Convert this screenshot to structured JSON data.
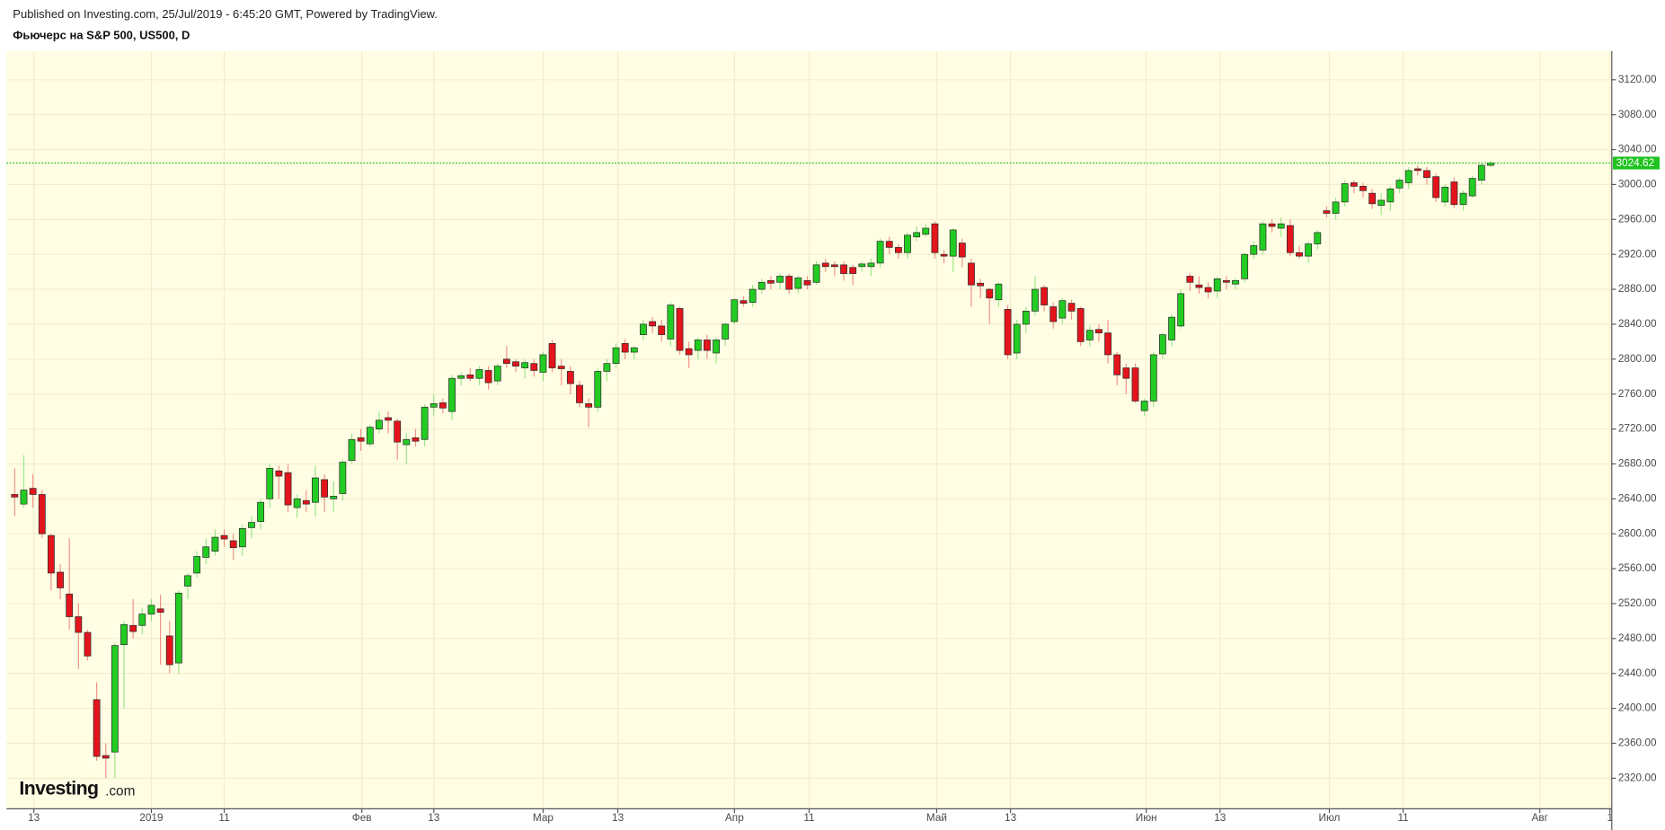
{
  "published": "Published on Investing.com, 25/Jul/2019 - 6:45:20 GMT, Powered by TradingView.",
  "logo": {
    "name": "Investing",
    "suffix": ".com"
  },
  "chart_data": {
    "type": "candlestick",
    "title": "Фьючерс на S&P 500, US500, D",
    "up_color": "#22cc22",
    "down_color": "#e3141c",
    "last_price": 3024.62,
    "last_price_color": "#1fc21f",
    "grid": true,
    "xlim": [
      -0.9,
      175.3
    ],
    "xticks": [
      {
        "value": 2.1,
        "label": "13"
      },
      {
        "value": 15,
        "label": "2019"
      },
      {
        "value": 23,
        "label": "11"
      },
      {
        "value": 38.1,
        "label": "Фев"
      },
      {
        "value": 46,
        "label": "13"
      },
      {
        "value": 58,
        "label": "Мар"
      },
      {
        "value": 66.2,
        "label": "13"
      },
      {
        "value": 79,
        "label": "Апр"
      },
      {
        "value": 87.2,
        "label": "11"
      },
      {
        "value": 101.2,
        "label": "Май"
      },
      {
        "value": 109.3,
        "label": "13"
      },
      {
        "value": 124.2,
        "label": "Июн"
      },
      {
        "value": 132.3,
        "label": "13"
      },
      {
        "value": 144.3,
        "label": "Июл"
      },
      {
        "value": 152.4,
        "label": "11"
      },
      {
        "value": 167.4,
        "label": "Авг"
      },
      {
        "value": 175.1,
        "label": "1"
      }
    ],
    "ylim": [
      2285,
      3153
    ],
    "yticks": [
      {
        "value": 2320,
        "label": "2320.00"
      },
      {
        "value": 2360,
        "label": "2360.00"
      },
      {
        "value": 2400,
        "label": "2400.00"
      },
      {
        "value": 2440,
        "label": "2440.00"
      },
      {
        "value": 2480,
        "label": "2480.00"
      },
      {
        "value": 2520,
        "label": "2520.00"
      },
      {
        "value": 2560,
        "label": "2560.00"
      },
      {
        "value": 2600,
        "label": "2600.00"
      },
      {
        "value": 2640,
        "label": "2640.00"
      },
      {
        "value": 2680,
        "label": "2680.00"
      },
      {
        "value": 2720,
        "label": "2720.00"
      },
      {
        "value": 2760,
        "label": "2760.00"
      },
      {
        "value": 2800,
        "label": "2800.00"
      },
      {
        "value": 2840,
        "label": "2840.00"
      },
      {
        "value": 2880,
        "label": "2880.00"
      },
      {
        "value": 2920,
        "label": "2920.00"
      },
      {
        "value": 2960,
        "label": "2960.00"
      },
      {
        "value": 3000,
        "label": "3000.00"
      },
      {
        "value": 3040,
        "label": "3040.00"
      },
      {
        "value": 3080,
        "label": "3080.00"
      },
      {
        "value": 3120,
        "label": "3120.00"
      }
    ],
    "open": [
      2645,
      2634,
      2652,
      2645,
      2598,
      2556,
      2531,
      2505,
      2487,
      2410,
      2346,
      2350,
      2473,
      2495,
      2495,
      2508,
      2514,
      2483,
      2452,
      2540,
      2555,
      2573,
      2580,
      2598,
      2592,
      2585,
      2607,
      2614,
      2640,
      2672,
      2670,
      2630,
      2638,
      2636,
      2662,
      2640,
      2646,
      2684,
      2710,
      2703,
      2720,
      2733,
      2729,
      2702,
      2710,
      2708,
      2745,
      2750,
      2740,
      2778,
      2782,
      2778,
      2787,
      2775,
      2800,
      2797,
      2790,
      2795,
      2785,
      2818,
      2792,
      2786,
      2770,
      2749,
      2745,
      2786,
      2795,
      2818,
      2808,
      2828,
      2843,
      2838,
      2823,
      2858,
      2812,
      2810,
      2822,
      2807,
      2823,
      2843,
      2867,
      2865,
      2880,
      2890,
      2888,
      2895,
      2881,
      2890,
      2888,
      2910,
      2908,
      2908,
      2905,
      2906,
      2906,
      2910,
      2935,
      2928,
      2922,
      2940,
      2943,
      2955,
      2920,
      2918,
      2933,
      2910,
      2887,
      2880,
      2868,
      2857,
      2807,
      2840,
      2855,
      2882,
      2860,
      2847,
      2864,
      2858,
      2822,
      2834,
      2830,
      2805,
      2790,
      2790,
      2741,
      2752,
      2806,
      2822,
      2838,
      2895,
      2885,
      2882,
      2878,
      2890,
      2886,
      2892,
      2920,
      2925,
      2955,
      2950,
      2953,
      2922,
      2918,
      2932,
      2970,
      2967,
      2980,
      3002,
      2998,
      2990,
      2976,
      2980,
      2996,
      3002,
      3018,
      3016,
      3009,
      2980,
      3003,
      2977,
      2987,
      3005,
      3022
    ],
    "high": [
      2675,
      2690,
      2668,
      2650,
      2600,
      2565,
      2595,
      2520,
      2490,
      2430,
      2360,
      2475,
      2500,
      2525,
      2515,
      2525,
      2530,
      2500,
      2535,
      2555,
      2580,
      2595,
      2605,
      2605,
      2600,
      2610,
      2620,
      2640,
      2680,
      2678,
      2680,
      2645,
      2650,
      2678,
      2668,
      2660,
      2685,
      2715,
      2720,
      2725,
      2740,
      2740,
      2732,
      2715,
      2720,
      2748,
      2760,
      2755,
      2782,
      2785,
      2790,
      2792,
      2792,
      2795,
      2815,
      2800,
      2800,
      2800,
      2808,
      2822,
      2800,
      2792,
      2775,
      2755,
      2790,
      2800,
      2818,
      2823,
      2815,
      2845,
      2848,
      2845,
      2865,
      2860,
      2820,
      2825,
      2828,
      2825,
      2842,
      2870,
      2872,
      2885,
      2892,
      2895,
      2898,
      2898,
      2896,
      2895,
      2912,
      2915,
      2912,
      2912,
      2908,
      2912,
      2915,
      2938,
      2940,
      2932,
      2945,
      2952,
      2955,
      2958,
      2925,
      2950,
      2938,
      2915,
      2892,
      2882,
      2888,
      2862,
      2845,
      2860,
      2895,
      2885,
      2865,
      2870,
      2868,
      2860,
      2838,
      2840,
      2845,
      2808,
      2795,
      2795,
      2755,
      2808,
      2830,
      2852,
      2880,
      2898,
      2895,
      2888,
      2895,
      2895,
      2893,
      2922,
      2935,
      2958,
      2960,
      2962,
      2960,
      2930,
      2935,
      2948,
      2975,
      2985,
      3005,
      3005,
      3002,
      2995,
      2990,
      2998,
      3008,
      3020,
      3022,
      3020,
      3012,
      3000,
      3008,
      2993,
      3010,
      3025,
      3027
    ],
    "low": [
      2620,
      2630,
      2630,
      2595,
      2535,
      2525,
      2490,
      2445,
      2455,
      2340,
      2320,
      2320,
      2400,
      2480,
      2485,
      2500,
      2450,
      2440,
      2440,
      2525,
      2550,
      2565,
      2575,
      2585,
      2570,
      2575,
      2595,
      2605,
      2630,
      2640,
      2625,
      2618,
      2625,
      2620,
      2625,
      2625,
      2638,
      2680,
      2695,
      2700,
      2715,
      2715,
      2685,
      2680,
      2700,
      2700,
      2735,
      2738,
      2730,
      2770,
      2775,
      2770,
      2765,
      2770,
      2790,
      2785,
      2778,
      2780,
      2775,
      2785,
      2770,
      2760,
      2745,
      2722,
      2740,
      2775,
      2790,
      2800,
      2800,
      2822,
      2830,
      2820,
      2815,
      2805,
      2790,
      2800,
      2800,
      2795,
      2815,
      2840,
      2860,
      2860,
      2875,
      2880,
      2880,
      2875,
      2875,
      2880,
      2885,
      2900,
      2895,
      2890,
      2885,
      2900,
      2895,
      2905,
      2920,
      2915,
      2915,
      2935,
      2940,
      2915,
      2910,
      2900,
      2905,
      2860,
      2870,
      2840,
      2860,
      2800,
      2800,
      2830,
      2850,
      2855,
      2835,
      2840,
      2845,
      2815,
      2815,
      2820,
      2795,
      2770,
      2760,
      2750,
      2735,
      2745,
      2800,
      2815,
      2835,
      2878,
      2875,
      2870,
      2870,
      2880,
      2880,
      2888,
      2915,
      2920,
      2945,
      2940,
      2918,
      2915,
      2910,
      2925,
      2962,
      2960,
      2975,
      2990,
      2985,
      2972,
      2965,
      2970,
      2990,
      2995,
      3010,
      3000,
      2980,
      2975,
      2973,
      2970,
      2985,
      3000,
      3020
    ],
    "close": [
      2642,
      2650,
      2645,
      2600,
      2555,
      2538,
      2505,
      2487,
      2460,
      2345,
      2343,
      2472,
      2496,
      2488,
      2508,
      2518,
      2510,
      2450,
      2532,
      2552,
      2574,
      2585,
      2596,
      2594,
      2584,
      2606,
      2613,
      2636,
      2675,
      2666,
      2633,
      2640,
      2634,
      2664,
      2642,
      2643,
      2682,
      2708,
      2706,
      2722,
      2730,
      2730,
      2705,
      2708,
      2706,
      2745,
      2749,
      2744,
      2778,
      2781,
      2778,
      2788,
      2773,
      2792,
      2795,
      2792,
      2796,
      2787,
      2805,
      2790,
      2789,
      2772,
      2750,
      2745,
      2786,
      2795,
      2813,
      2808,
      2813,
      2840,
      2838,
      2828,
      2862,
      2810,
      2805,
      2822,
      2810,
      2822,
      2840,
      2868,
      2864,
      2880,
      2888,
      2887,
      2895,
      2880,
      2893,
      2885,
      2908,
      2906,
      2906,
      2898,
      2898,
      2909,
      2910,
      2935,
      2928,
      2922,
      2942,
      2945,
      2950,
      2922,
      2918,
      2948,
      2917,
      2885,
      2884,
      2870,
      2886,
      2805,
      2840,
      2855,
      2880,
      2862,
      2843,
      2867,
      2855,
      2820,
      2833,
      2830,
      2805,
      2782,
      2778,
      2752,
      2752,
      2805,
      2828,
      2848,
      2875,
      2888,
      2882,
      2877,
      2892,
      2888,
      2890,
      2920,
      2930,
      2955,
      2952,
      2955,
      2922,
      2918,
      2932,
      2945,
      2967,
      2980,
      3001,
      2998,
      2993,
      2978,
      2982,
      2995,
      3005,
      3016,
      3016,
      3008,
      2985,
      2997,
      2977,
      2990,
      3007,
      3022,
      3024.62
    ]
  }
}
